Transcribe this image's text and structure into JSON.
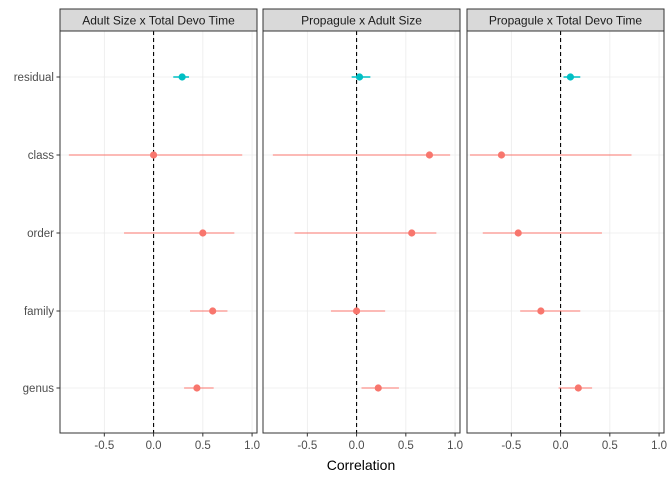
{
  "chart_data": {
    "type": "scatter",
    "subtype": "forest-plot-with-error-bars",
    "xlabel": "Correlation",
    "ylabel": "",
    "xlim": [
      -0.95,
      1.05
    ],
    "x_ticks": [
      -0.5,
      0.0,
      0.5,
      1.0
    ],
    "x_tick_labels": [
      "-0.5",
      "0.0",
      "0.5",
      "1.0"
    ],
    "categories": [
      "residual",
      "class",
      "order",
      "family",
      "genus"
    ],
    "reference_line_x": 0,
    "grid": true,
    "legend": "none",
    "colors": {
      "residual": "#00BFC4",
      "other": "#F8766D"
    },
    "panels": [
      {
        "title": "Adult Size x Total Devo Time",
        "points": [
          {
            "category": "residual",
            "estimate": 0.29,
            "lower": 0.2,
            "upper": 0.36
          },
          {
            "category": "class",
            "estimate": 0.0,
            "lower": -0.86,
            "upper": 0.9
          },
          {
            "category": "order",
            "estimate": 0.5,
            "lower": -0.3,
            "upper": 0.82
          },
          {
            "category": "family",
            "estimate": 0.6,
            "lower": 0.37,
            "upper": 0.75
          },
          {
            "category": "genus",
            "estimate": 0.44,
            "lower": 0.31,
            "upper": 0.61
          }
        ]
      },
      {
        "title": "Propagule x Adult Size",
        "points": [
          {
            "category": "residual",
            "estimate": 0.03,
            "lower": -0.05,
            "upper": 0.14
          },
          {
            "category": "class",
            "estimate": 0.74,
            "lower": -0.85,
            "upper": 0.95
          },
          {
            "category": "order",
            "estimate": 0.56,
            "lower": -0.63,
            "upper": 0.81
          },
          {
            "category": "family",
            "estimate": 0.0,
            "lower": -0.26,
            "upper": 0.29
          },
          {
            "category": "genus",
            "estimate": 0.22,
            "lower": 0.05,
            "upper": 0.43
          }
        ]
      },
      {
        "title": "Propagule x Total Devo Time",
        "points": [
          {
            "category": "residual",
            "estimate": 0.1,
            "lower": 0.03,
            "upper": 0.2
          },
          {
            "category": "class",
            "estimate": -0.6,
            "lower": -0.92,
            "upper": 0.72
          },
          {
            "category": "order",
            "estimate": -0.43,
            "lower": -0.79,
            "upper": 0.42
          },
          {
            "category": "family",
            "estimate": -0.2,
            "lower": -0.41,
            "upper": 0.2
          },
          {
            "category": "genus",
            "estimate": 0.18,
            "lower": -0.02,
            "upper": 0.32
          }
        ]
      }
    ]
  }
}
